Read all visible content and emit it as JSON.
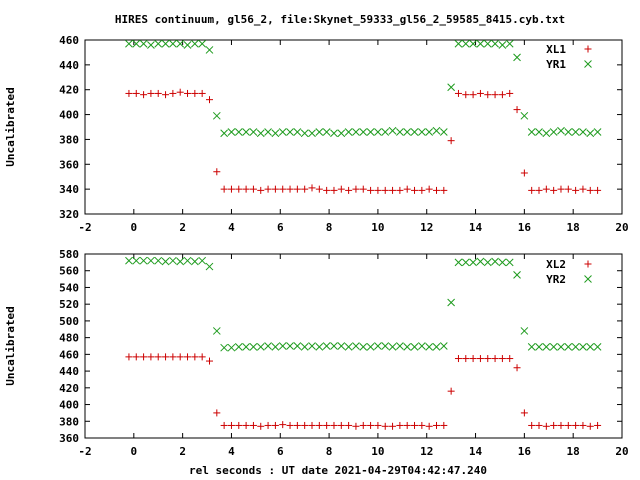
{
  "title": "HIRES continuum, gl56_2, file:Skynet_59333_gl56_2_59585_8415.cyb.txt",
  "xlabel": "rel seconds : UT date 2021-04-29T04:42:47.240",
  "colors": {
    "red": "#cc0000",
    "green": "#1e9b1e",
    "axis": "#000000"
  },
  "chart_data": [
    {
      "type": "scatter",
      "ylabel": "Uncalibrated",
      "xlim": [
        -2,
        20
      ],
      "ylim": [
        320,
        460
      ],
      "xticks": [
        "-2",
        "0",
        "2",
        "4",
        "6",
        "8",
        "10",
        "12",
        "14",
        "16",
        "18",
        "20"
      ],
      "yticks": [
        "320",
        "340",
        "360",
        "380",
        "400",
        "420",
        "440",
        "460"
      ],
      "legend_position": "top-right",
      "series": [
        {
          "name": "XL1",
          "marker": "plus",
          "color": "#cc0000",
          "x": [
            -0.2,
            0.1,
            0.4,
            0.7,
            1.0,
            1.3,
            1.6,
            1.9,
            2.2,
            2.5,
            2.8,
            3.1,
            3.4,
            3.7,
            4.0,
            4.3,
            4.6,
            4.9,
            5.2,
            5.5,
            5.8,
            6.1,
            6.4,
            6.7,
            7.0,
            7.3,
            7.6,
            7.9,
            8.2,
            8.5,
            8.8,
            9.1,
            9.4,
            9.7,
            10.0,
            10.3,
            10.6,
            10.9,
            11.2,
            11.5,
            11.8,
            12.1,
            12.4,
            12.7,
            13.0,
            13.3,
            13.6,
            13.9,
            14.2,
            14.5,
            14.8,
            15.1,
            15.4,
            15.7,
            16.0,
            16.3,
            16.6,
            16.9,
            17.2,
            17.5,
            17.8,
            18.1,
            18.4,
            18.7,
            19.0
          ],
          "y": [
            417,
            417,
            416,
            417,
            417,
            416,
            417,
            418,
            417,
            417,
            417,
            412,
            354,
            340,
            340,
            340,
            340,
            340,
            339,
            340,
            340,
            340,
            340,
            340,
            340,
            341,
            340,
            339,
            339,
            340,
            339,
            340,
            340,
            339,
            339,
            339,
            339,
            339,
            340,
            339,
            339,
            340,
            339,
            339,
            379,
            417,
            416,
            416,
            417,
            416,
            416,
            416,
            417,
            404,
            353,
            339,
            339,
            340,
            339,
            340,
            340,
            339,
            340,
            339,
            339
          ]
        },
        {
          "name": "YR1",
          "marker": "cross",
          "color": "#1e9b1e",
          "x": [
            -0.2,
            0.1,
            0.4,
            0.7,
            1.0,
            1.3,
            1.6,
            1.9,
            2.2,
            2.5,
            2.8,
            3.1,
            3.4,
            3.7,
            4.0,
            4.3,
            4.6,
            4.9,
            5.2,
            5.5,
            5.8,
            6.1,
            6.4,
            6.7,
            7.0,
            7.3,
            7.6,
            7.9,
            8.2,
            8.5,
            8.8,
            9.1,
            9.4,
            9.7,
            10.0,
            10.3,
            10.6,
            10.9,
            11.2,
            11.5,
            11.8,
            12.1,
            12.4,
            12.7,
            13.0,
            13.3,
            13.6,
            13.9,
            14.2,
            14.5,
            14.8,
            15.1,
            15.4,
            15.7,
            16.0,
            16.3,
            16.6,
            16.9,
            17.2,
            17.5,
            17.8,
            18.1,
            18.4,
            18.7,
            19.0
          ],
          "y": [
            457,
            457,
            457,
            456,
            457,
            457,
            457,
            457,
            456,
            457,
            457,
            452,
            399,
            385,
            386,
            386,
            386,
            386,
            385,
            386,
            385,
            386,
            386,
            386,
            385,
            385,
            386,
            386,
            385,
            385,
            386,
            386,
            386,
            386,
            386,
            386,
            387,
            386,
            386,
            386,
            386,
            386,
            387,
            386,
            422,
            457,
            457,
            457,
            457,
            457,
            457,
            456,
            457,
            446,
            399,
            386,
            386,
            385,
            386,
            387,
            386,
            386,
            386,
            385,
            386
          ]
        }
      ]
    },
    {
      "type": "scatter",
      "ylabel": "Uncalibrated",
      "xlim": [
        -2,
        20
      ],
      "ylim": [
        360,
        580
      ],
      "xticks": [
        "-2",
        "0",
        "2",
        "4",
        "6",
        "8",
        "10",
        "12",
        "14",
        "16",
        "18",
        "20"
      ],
      "yticks": [
        "360",
        "380",
        "400",
        "420",
        "440",
        "460",
        "480",
        "500",
        "520",
        "540",
        "560",
        "580"
      ],
      "legend_position": "top-right",
      "series": [
        {
          "name": "XL2",
          "marker": "plus",
          "color": "#cc0000",
          "x": [
            -0.2,
            0.1,
            0.4,
            0.7,
            1.0,
            1.3,
            1.6,
            1.9,
            2.2,
            2.5,
            2.8,
            3.1,
            3.4,
            3.7,
            4.0,
            4.3,
            4.6,
            4.9,
            5.2,
            5.5,
            5.8,
            6.1,
            6.4,
            6.7,
            7.0,
            7.3,
            7.6,
            7.9,
            8.2,
            8.5,
            8.8,
            9.1,
            9.4,
            9.7,
            10.0,
            10.3,
            10.6,
            10.9,
            11.2,
            11.5,
            11.8,
            12.1,
            12.4,
            12.7,
            13.0,
            13.3,
            13.6,
            13.9,
            14.2,
            14.5,
            14.8,
            15.1,
            15.4,
            15.7,
            16.0,
            16.3,
            16.6,
            16.9,
            17.2,
            17.5,
            17.8,
            18.1,
            18.4,
            18.7,
            19.0
          ],
          "y": [
            457,
            457,
            457,
            457,
            457,
            457,
            457,
            457,
            457,
            457,
            457,
            452,
            390,
            375,
            375,
            375,
            375,
            375,
            374,
            375,
            375,
            376,
            375,
            375,
            375,
            375,
            375,
            375,
            375,
            375,
            375,
            374,
            375,
            375,
            375,
            374,
            374,
            375,
            375,
            375,
            375,
            374,
            375,
            375,
            416,
            455,
            455,
            455,
            455,
            455,
            455,
            455,
            455,
            444,
            390,
            375,
            375,
            374,
            375,
            375,
            375,
            375,
            375,
            374,
            375
          ]
        },
        {
          "name": "YR2",
          "marker": "cross",
          "color": "#1e9b1e",
          "x": [
            -0.2,
            0.1,
            0.4,
            0.7,
            1.0,
            1.3,
            1.6,
            1.9,
            2.2,
            2.5,
            2.8,
            3.1,
            3.4,
            3.7,
            4.0,
            4.3,
            4.6,
            4.9,
            5.2,
            5.5,
            5.8,
            6.1,
            6.4,
            6.7,
            7.0,
            7.3,
            7.6,
            7.9,
            8.2,
            8.5,
            8.8,
            9.1,
            9.4,
            9.7,
            10.0,
            10.3,
            10.6,
            10.9,
            11.2,
            11.5,
            11.8,
            12.1,
            12.4,
            12.7,
            13.0,
            13.3,
            13.6,
            13.9,
            14.2,
            14.5,
            14.8,
            15.1,
            15.4,
            15.7,
            16.0,
            16.3,
            16.6,
            16.9,
            17.2,
            17.5,
            17.8,
            18.1,
            18.4,
            18.7,
            19.0
          ],
          "y": [
            572,
            572,
            572,
            572,
            572,
            571,
            572,
            571,
            572,
            571,
            572,
            565,
            488,
            468,
            468,
            469,
            469,
            469,
            469,
            470,
            469,
            470,
            470,
            470,
            469,
            470,
            469,
            470,
            470,
            470,
            469,
            470,
            469,
            469,
            470,
            470,
            469,
            470,
            469,
            469,
            470,
            469,
            469,
            470,
            522,
            570,
            570,
            570,
            571,
            570,
            571,
            570,
            570,
            555,
            488,
            469,
            469,
            469,
            469,
            469,
            469,
            469,
            469,
            469,
            469
          ]
        }
      ]
    }
  ]
}
